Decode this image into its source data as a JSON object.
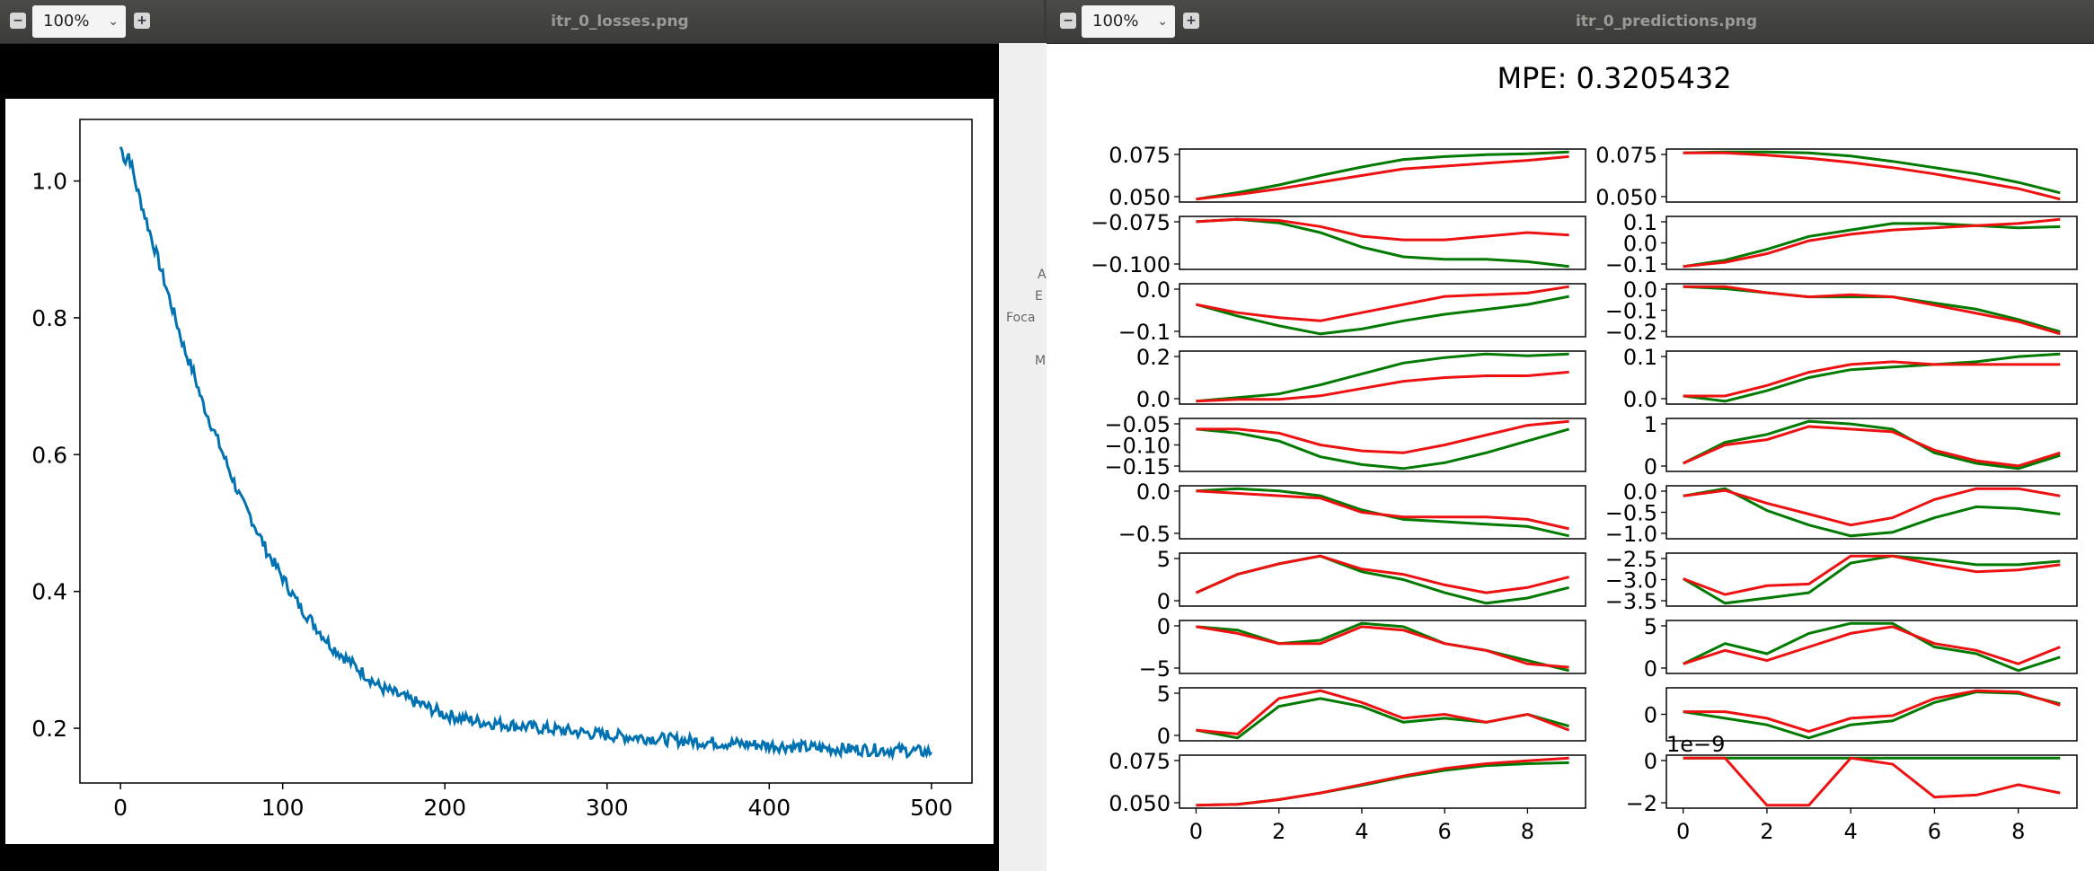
{
  "windows": [
    {
      "title": "itr_0_losses.png",
      "zoom": "100%",
      "chart_data": {
        "type": "line",
        "series": [
          {
            "x": [
              0,
              3,
              5,
              10,
              15,
              20,
              25,
              30,
              35,
              40,
              45,
              50,
              55,
              60,
              65,
              70,
              75,
              80,
              90,
              100,
              110,
              120,
              130,
              140,
              150,
              160,
              170,
              180,
              190,
              200,
              220,
              240,
              260,
              280,
              300,
              330,
              360,
              400,
              440,
              480,
              500
            ],
            "values": [
              1.05,
              1.03,
              1.04,
              0.99,
              0.95,
              0.91,
              0.87,
              0.83,
              0.79,
              0.75,
              0.72,
              0.68,
              0.65,
              0.62,
              0.59,
              0.56,
              0.53,
              0.51,
              0.46,
              0.42,
              0.38,
              0.35,
              0.32,
              0.3,
              0.28,
              0.26,
              0.25,
              0.24,
              0.23,
              0.22,
              0.21,
              0.205,
              0.2,
              0.195,
              0.19,
              0.185,
              0.18,
              0.175,
              0.17,
              0.168,
              0.165
            ],
            "color": "#0072b2"
          }
        ],
        "xlim": [
          -25,
          525
        ],
        "ylim": [
          0.12,
          1.09
        ],
        "xticks": [
          "0",
          "100",
          "200",
          "300",
          "400",
          "500"
        ],
        "yticks": [
          "0.2",
          "0.4",
          "0.6",
          "0.8",
          "1.0"
        ]
      }
    },
    {
      "title": "itr_0_predictions.png",
      "zoom": "100%",
      "chart_data": {
        "type": "line",
        "title": "MPE: 0.3205432",
        "x": [
          0,
          1,
          2,
          3,
          4,
          5,
          6,
          7,
          8,
          9
        ],
        "xticks": [
          "0",
          "2",
          "4",
          "6",
          "8"
        ],
        "series_colors": {
          "green": "#007a00",
          "red": "#ee1111"
        },
        "subplots": [
          {
            "yticks": [
              "0.075",
              "0.050"
            ],
            "green": [
              0.04,
              0.047,
              0.055,
              0.065,
              0.074,
              0.082,
              0.085,
              0.087,
              0.088,
              0.09
            ],
            "red": [
              0.04,
              0.045,
              0.051,
              0.058,
              0.065,
              0.072,
              0.075,
              0.078,
              0.081,
              0.085
            ]
          },
          {
            "yticks": [
              "0.075",
              "0.050"
            ],
            "green": [
              0.08,
              0.081,
              0.081,
              0.08,
              0.077,
              0.072,
              0.066,
              0.06,
              0.052,
              0.042
            ],
            "red": [
              0.08,
              0.08,
              0.078,
              0.075,
              0.071,
              0.066,
              0.06,
              0.053,
              0.046,
              0.036
            ]
          },
          {
            "yticks": [
              "−0.075",
              "−0.100"
            ],
            "green": [
              -0.067,
              -0.065,
              -0.068,
              -0.076,
              -0.088,
              -0.096,
              -0.098,
              -0.098,
              -0.1,
              -0.104
            ],
            "red": [
              -0.067,
              -0.065,
              -0.066,
              -0.071,
              -0.079,
              -0.082,
              -0.082,
              -0.079,
              -0.076,
              -0.078
            ]
          },
          {
            "yticks": [
              "0.1",
              "0.0",
              "−0.1"
            ],
            "green": [
              -0.1,
              -0.07,
              -0.02,
              0.04,
              0.07,
              0.1,
              0.1,
              0.09,
              0.08,
              0.085
            ],
            "red": [
              -0.1,
              -0.08,
              -0.04,
              0.02,
              0.05,
              0.07,
              0.08,
              0.09,
              0.1,
              0.12
            ]
          },
          {
            "yticks": [
              "0.0",
              "−0.1"
            ],
            "green": [
              -0.055,
              -0.09,
              -0.12,
              -0.145,
              -0.13,
              -0.105,
              -0.085,
              -0.07,
              -0.055,
              -0.03
            ],
            "red": [
              -0.055,
              -0.08,
              -0.095,
              -0.105,
              -0.08,
              -0.055,
              -0.03,
              -0.025,
              -0.02,
              0.0
            ]
          },
          {
            "yticks": [
              "0.0",
              "−0.1",
              "−0.2"
            ],
            "green": [
              0.03,
              0.02,
              0.0,
              -0.02,
              -0.02,
              -0.02,
              -0.05,
              -0.08,
              -0.13,
              -0.19
            ],
            "red": [
              0.03,
              0.03,
              0.0,
              -0.02,
              -0.01,
              -0.02,
              -0.06,
              -0.1,
              -0.14,
              -0.2
            ]
          },
          {
            "yticks": [
              "0.2",
              "0.0"
            ],
            "green": [
              -0.02,
              0.0,
              0.02,
              0.07,
              0.13,
              0.19,
              0.22,
              0.24,
              0.23,
              0.24
            ],
            "red": [
              -0.02,
              -0.01,
              -0.01,
              0.01,
              0.05,
              0.09,
              0.11,
              0.12,
              0.12,
              0.14
            ]
          },
          {
            "yticks": [
              "0.1",
              "0.0"
            ],
            "green": [
              -0.02,
              -0.04,
              0.0,
              0.05,
              0.08,
              0.09,
              0.1,
              0.11,
              0.13,
              0.14
            ],
            "red": [
              -0.02,
              -0.02,
              0.02,
              0.07,
              0.1,
              0.11,
              0.1,
              0.1,
              0.1,
              0.1
            ]
          },
          {
            "yticks": [
              "−0.05",
              "−0.10",
              "−0.15"
            ],
            "green": [
              -0.07,
              -0.08,
              -0.1,
              -0.14,
              -0.16,
              -0.17,
              -0.155,
              -0.13,
              -0.1,
              -0.07
            ],
            "red": [
              -0.07,
              -0.07,
              -0.08,
              -0.11,
              -0.125,
              -0.13,
              -0.11,
              -0.085,
              -0.06,
              -0.05
            ]
          },
          {
            "yticks": [
              "1",
              "0"
            ],
            "green": [
              0.2,
              0.6,
              0.75,
              1.0,
              0.95,
              0.85,
              0.4,
              0.2,
              0.1,
              0.35
            ],
            "red": [
              0.2,
              0.55,
              0.65,
              0.9,
              0.85,
              0.8,
              0.45,
              0.25,
              0.15,
              0.4
            ]
          },
          {
            "yticks": [
              "0.0",
              "−0.5"
            ],
            "green": [
              0.05,
              0.1,
              0.05,
              -0.05,
              -0.35,
              -0.55,
              -0.6,
              -0.65,
              -0.7,
              -0.9
            ],
            "red": [
              0.05,
              0.0,
              -0.05,
              -0.1,
              -0.4,
              -0.5,
              -0.5,
              -0.5,
              -0.55,
              -0.75
            ]
          },
          {
            "yticks": [
              "0.0",
              "−0.5",
              "−1.0"
            ],
            "green": [
              0.0,
              0.2,
              -0.4,
              -0.8,
              -1.1,
              -1.0,
              -0.6,
              -0.3,
              -0.35,
              -0.5
            ],
            "red": [
              0.0,
              0.15,
              -0.2,
              -0.5,
              -0.8,
              -0.6,
              -0.1,
              0.2,
              0.2,
              0.0
            ]
          },
          {
            "yticks": [
              "5",
              "0"
            ],
            "green": [
              0.0,
              3.5,
              5.5,
              7.0,
              4.0,
              2.5,
              0.0,
              -2.0,
              -1.0,
              1.0
            ],
            "red": [
              0.0,
              3.5,
              5.5,
              7.0,
              4.5,
              3.5,
              1.5,
              0.0,
              1.0,
              3.0
            ]
          },
          {
            "yticks": [
              "−2.5",
              "−3.0",
              "−3.5"
            ],
            "green": [
              -2.9,
              -3.6,
              -3.45,
              -3.3,
              -2.45,
              -2.25,
              -2.35,
              -2.5,
              -2.5,
              -2.4
            ],
            "red": [
              -2.9,
              -3.35,
              -3.1,
              -3.05,
              -2.25,
              -2.25,
              -2.5,
              -2.7,
              -2.65,
              -2.5
            ]
          },
          {
            "yticks": [
              "0",
              "−5"
            ],
            "green": [
              0.0,
              -0.5,
              -2.5,
              -2.0,
              0.5,
              0.0,
              -2.5,
              -3.5,
              -5.0,
              -6.5
            ],
            "red": [
              0.0,
              -1.0,
              -2.5,
              -2.5,
              0.0,
              -0.5,
              -2.5,
              -3.5,
              -5.5,
              -6.0
            ]
          },
          {
            "yticks": [
              "5",
              "0"
            ],
            "green": [
              0.0,
              3.0,
              1.5,
              4.5,
              6.0,
              6.0,
              2.5,
              1.5,
              -1.0,
              1.0
            ],
            "red": [
              0.0,
              2.0,
              0.5,
              2.5,
              4.5,
              5.5,
              3.0,
              2.0,
              0.0,
              2.5
            ]
          },
          {
            "yticks": [
              "5",
              "0"
            ],
            "green": [
              0.0,
              -1.0,
              3.0,
              4.0,
              3.0,
              1.0,
              1.5,
              1.0,
              2.0,
              0.5
            ],
            "red": [
              0.0,
              -0.5,
              4.0,
              5.0,
              3.5,
              1.5,
              2.0,
              1.0,
              2.0,
              0.0
            ]
          },
          {
            "yticks": [
              "0"
            ],
            "green": [
              0.0,
              -0.5,
              -1.0,
              -2.0,
              -1.0,
              -0.7,
              0.7,
              1.5,
              1.4,
              0.6
            ],
            "red": [
              0.0,
              0.0,
              -0.5,
              -1.5,
              -0.5,
              -0.3,
              1.0,
              1.6,
              1.5,
              0.5
            ]
          },
          {
            "yticks": [
              "0.075",
              "0.050"
            ],
            "green": [
              0.04,
              0.041,
              0.046,
              0.053,
              0.061,
              0.07,
              0.077,
              0.082,
              0.084,
              0.085
            ],
            "red": [
              0.04,
              0.041,
              0.046,
              0.053,
              0.062,
              0.071,
              0.079,
              0.084,
              0.087,
              0.09
            ]
          },
          {
            "yticks": [
              "0",
              "−2"
            ],
            "offset": "1e−9",
            "green": [
              0,
              0,
              0,
              0,
              0,
              0,
              0,
              0,
              0,
              0
            ],
            "red": [
              0.0,
              0.0,
              -2.3,
              -2.3,
              0.0,
              -0.3,
              -1.9,
              -1.8,
              -1.3,
              -1.7
            ]
          }
        ]
      }
    }
  ],
  "background_fragments": [
    "A",
    "E",
    "Foca",
    "M"
  ]
}
